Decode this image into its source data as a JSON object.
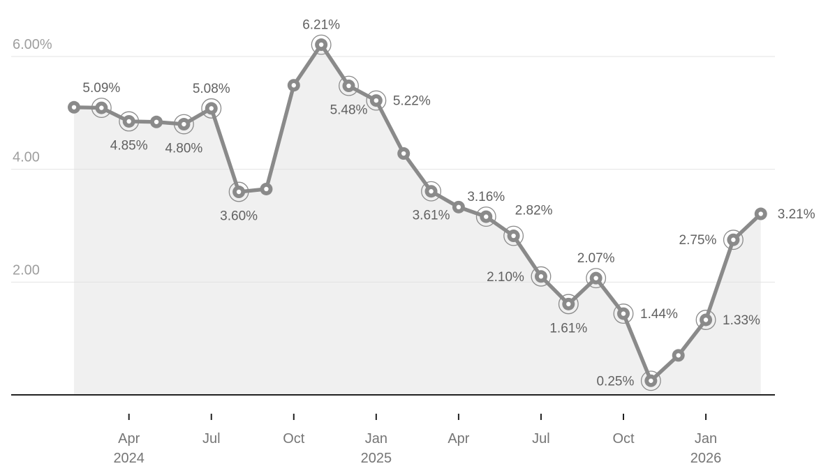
{
  "chart_data": {
    "type": "area",
    "title": "",
    "subtitle": "",
    "unit": "%",
    "legend": "none",
    "grid": "horizontal",
    "categories": [
      "Feb 2024",
      "Mar 2024",
      "Apr 2024",
      "May 2024",
      "Jun 2024",
      "Jul 2024",
      "Aug 2024",
      "Sep 2024",
      "Oct 2024",
      "Nov 2024",
      "Dec 2024",
      "Jan 2025",
      "Feb 2025",
      "Mar 2025",
      "Apr 2025",
      "May 2025",
      "Jun 2025",
      "Jul 2025",
      "Aug 2025",
      "Sep 2025",
      "Oct 2025",
      "Nov 2025",
      "Dec 2025",
      "Jan 2026",
      "Feb 2026",
      "Mar 2026"
    ],
    "values": [
      5.1,
      5.09,
      4.85,
      4.84,
      4.8,
      5.08,
      3.6,
      3.65,
      5.49,
      6.21,
      5.48,
      5.22,
      4.28,
      3.61,
      3.33,
      3.16,
      2.82,
      2.1,
      1.61,
      2.07,
      1.44,
      0.25,
      0.7,
      1.33,
      2.75,
      3.21
    ],
    "point_labels": [
      null,
      "5.09%",
      "4.85%",
      null,
      "4.80%",
      "5.08%",
      "3.60%",
      null,
      null,
      "6.21%",
      "5.48%",
      "5.22%",
      null,
      "3.61%",
      null,
      "3.16%",
      "2.82%",
      "2.10%",
      "1.61%",
      "2.07%",
      "1.44%",
      "0.25%",
      null,
      "1.33%",
      "2.75%",
      "3.21%"
    ],
    "label_side": [
      null,
      "above",
      "below",
      null,
      "below",
      "above",
      "below",
      null,
      null,
      "above",
      "below",
      "right",
      null,
      "below",
      null,
      "above",
      "above-right",
      "left",
      "below",
      "above",
      "right",
      "left",
      null,
      "right",
      "left",
      "right"
    ],
    "ringed": [
      false,
      true,
      true,
      false,
      true,
      true,
      true,
      false,
      false,
      true,
      true,
      true,
      false,
      true,
      false,
      true,
      true,
      true,
      true,
      true,
      true,
      true,
      false,
      true,
      true,
      false
    ],
    "y_axis": {
      "min": 0,
      "max": 7,
      "gridlines": [
        {
          "value": 2,
          "label": "2.00"
        },
        {
          "value": 4,
          "label": "4.00"
        },
        {
          "value": 6,
          "label": "6.00%"
        }
      ]
    },
    "x_axis": {
      "ticks": [
        {
          "month_index": 2,
          "label": "Apr",
          "year": "2024"
        },
        {
          "month_index": 5,
          "label": "Jul",
          "year": ""
        },
        {
          "month_index": 8,
          "label": "Oct",
          "year": ""
        },
        {
          "month_index": 11,
          "label": "Jan",
          "year": "2025"
        },
        {
          "month_index": 14,
          "label": "Apr",
          "year": ""
        },
        {
          "month_index": 17,
          "label": "Jul",
          "year": ""
        },
        {
          "month_index": 20,
          "label": "Oct",
          "year": ""
        },
        {
          "month_index": 23,
          "label": "Jan",
          "year": "2026"
        }
      ]
    },
    "colors": {
      "background": "#ffffff",
      "line": "#8a8a8a",
      "point_fill": "#8a8a8a",
      "point_hole": "#ffffff",
      "ring": "#8a8a8a",
      "area_fill": "#f0f0f0",
      "gridline": "#e3e3e3",
      "axis_line": "#212121",
      "tick_mark": "#212121",
      "data_label": "#616161",
      "y_axis_label": "#9e9e9e",
      "x_axis_label": "#757575"
    }
  }
}
